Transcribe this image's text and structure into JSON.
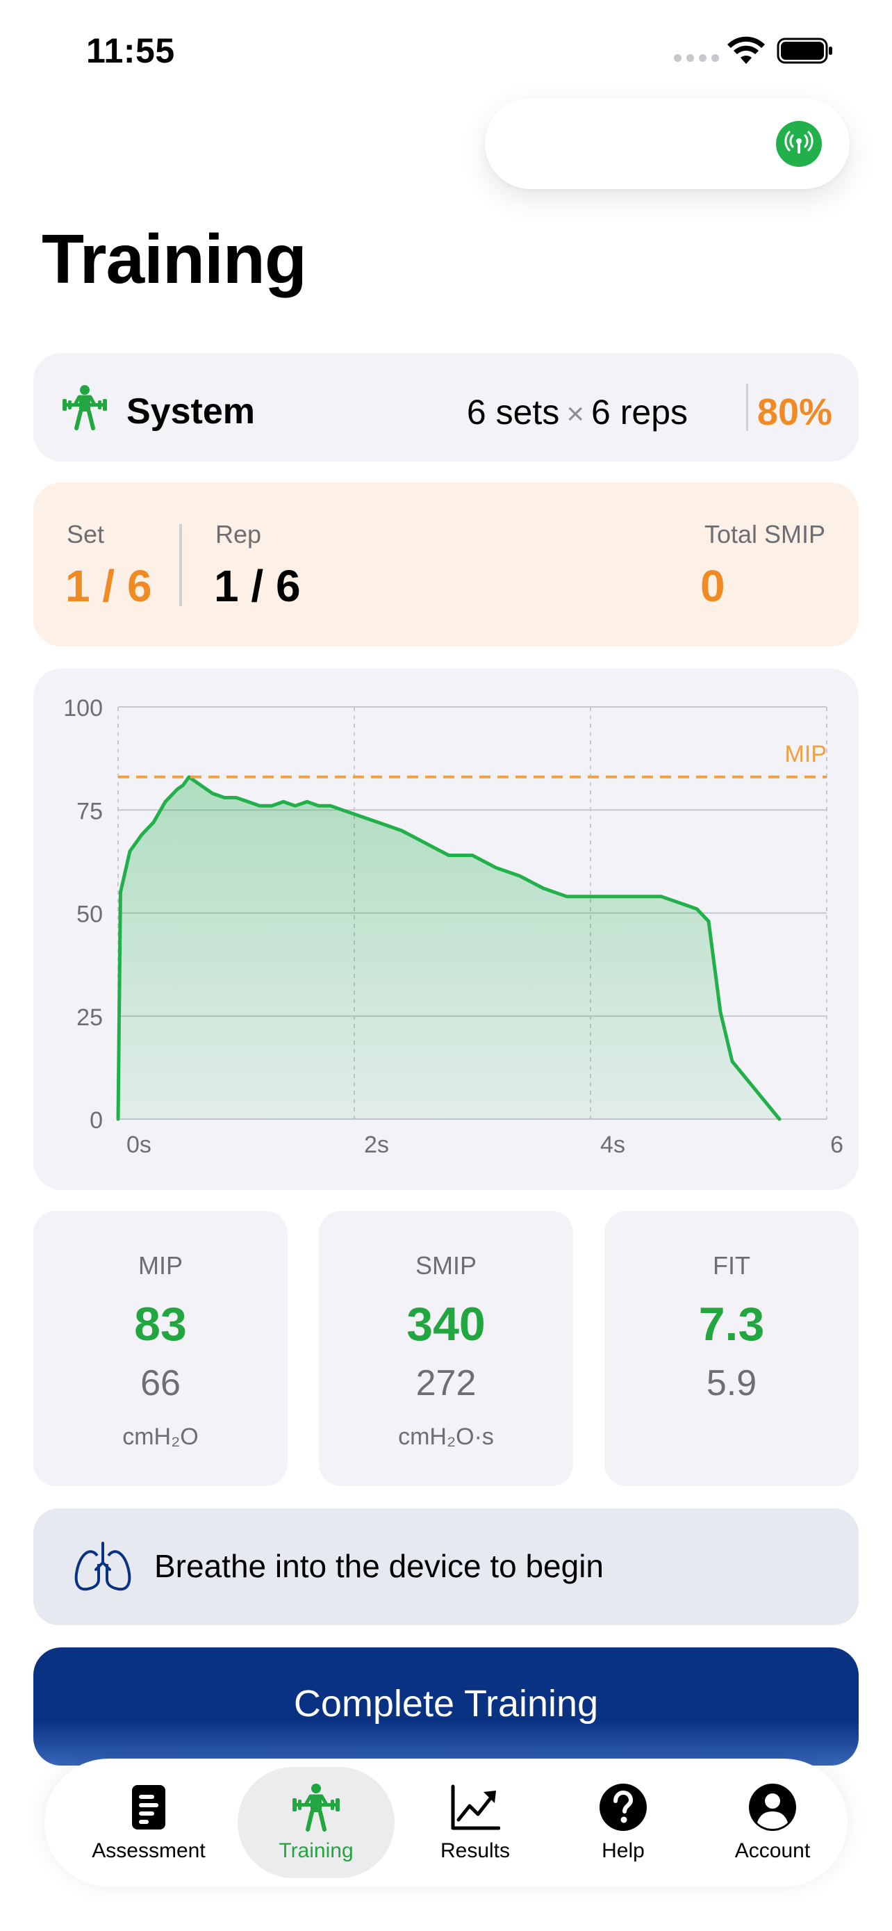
{
  "status_bar": {
    "time": "11:55"
  },
  "page": {
    "title": "Training"
  },
  "system": {
    "label": "System",
    "sets": "6 sets",
    "times": "×",
    "reps": "6 reps",
    "intensity": "80%"
  },
  "progress": {
    "set_label": "Set",
    "set_value": "1 / 6",
    "rep_label": "Rep",
    "rep_value": "1 / 6",
    "total_label": "Total SMIP",
    "total_value": "0"
  },
  "chart_data": {
    "type": "area",
    "x": [
      0,
      0.02,
      0.1,
      0.2,
      0.3,
      0.4,
      0.5,
      0.55,
      0.6,
      0.65,
      0.7,
      0.8,
      0.9,
      1.0,
      1.1,
      1.2,
      1.3,
      1.4,
      1.5,
      1.6,
      1.7,
      1.8,
      1.9,
      2.0,
      2.2,
      2.4,
      2.6,
      2.8,
      3.0,
      3.2,
      3.4,
      3.6,
      3.8,
      4.0,
      4.2,
      4.4,
      4.6,
      4.7,
      4.8,
      4.9,
      5.0,
      5.1,
      5.2,
      5.4,
      5.6
    ],
    "values": [
      0,
      55,
      65,
      69,
      72,
      77,
      80,
      81,
      83,
      82,
      81,
      79,
      78,
      78,
      77,
      76,
      76,
      77,
      76,
      77,
      76,
      76,
      75,
      74,
      72,
      70,
      67,
      64,
      64,
      61,
      59,
      56,
      54,
      54,
      54,
      54,
      54,
      53,
      52,
      51,
      48,
      26,
      14,
      7,
      0
    ],
    "xlim": [
      0,
      6
    ],
    "ylim": [
      0,
      100
    ],
    "x_ticks": [
      "0s",
      "2s",
      "4s",
      "6"
    ],
    "y_ticks": [
      "0",
      "25",
      "50",
      "75",
      "100"
    ],
    "reference_line": {
      "label": "MIP",
      "value": 83
    },
    "grid": true,
    "line_color": "#22b04a",
    "reference_color": "#f0a040"
  },
  "stats": [
    {
      "label": "MIP",
      "value": "83",
      "secondary": "66",
      "unit": "cmH₂O"
    },
    {
      "label": "SMIP",
      "value": "340",
      "secondary": "272",
      "unit": "cmH₂O·s"
    },
    {
      "label": "FIT",
      "value": "7.3",
      "secondary": "5.9",
      "unit": ""
    }
  ],
  "hint": {
    "text": "Breathe into the device to begin"
  },
  "actions": {
    "complete_label": "Complete Training"
  },
  "tabs": [
    {
      "label": "Assessment",
      "icon": "clipboard-icon"
    },
    {
      "label": "Training",
      "icon": "weightlifter-icon",
      "active": true
    },
    {
      "label": "Results",
      "icon": "chart-trend-icon"
    },
    {
      "label": "Help",
      "icon": "question-icon"
    },
    {
      "label": "Account",
      "icon": "person-icon"
    }
  ],
  "colors": {
    "accent_green": "#22a63f",
    "accent_orange": "#f08a24",
    "primary_blue": "#0a3282"
  }
}
